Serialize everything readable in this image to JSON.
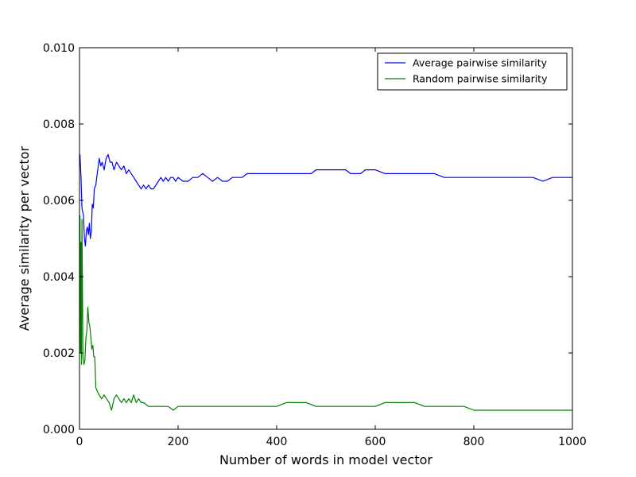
{
  "chart_data": {
    "type": "line",
    "xlabel": "Number of words in model vector",
    "ylabel": "Average similarity per vector",
    "xlim": [
      0,
      1000
    ],
    "ylim": [
      0,
      0.01
    ],
    "x_ticks": [
      "0",
      "200",
      "400",
      "600",
      "800",
      "1000"
    ],
    "y_ticks": [
      "0.000",
      "0.002",
      "0.004",
      "0.006",
      "0.008",
      "0.010"
    ],
    "grid": false,
    "legend_position": "top-right",
    "series": [
      {
        "name": "Average pairwise similarity",
        "color": "#0000ff",
        "points": [
          [
            1,
            0.0072
          ],
          [
            3,
            0.0066
          ],
          [
            5,
            0.0058
          ],
          [
            8,
            0.0056
          ],
          [
            10,
            0.005
          ],
          [
            12,
            0.0048
          ],
          [
            14,
            0.0052
          ],
          [
            16,
            0.0053
          ],
          [
            18,
            0.0051
          ],
          [
            20,
            0.0054
          ],
          [
            22,
            0.005
          ],
          [
            24,
            0.0052
          ],
          [
            26,
            0.0059
          ],
          [
            28,
            0.0058
          ],
          [
            30,
            0.0063
          ],
          [
            33,
            0.0064
          ],
          [
            36,
            0.0067
          ],
          [
            38,
            0.0069
          ],
          [
            40,
            0.0071
          ],
          [
            43,
            0.0069
          ],
          [
            46,
            0.007
          ],
          [
            50,
            0.0068
          ],
          [
            54,
            0.0071
          ],
          [
            58,
            0.0072
          ],
          [
            62,
            0.007
          ],
          [
            66,
            0.007
          ],
          [
            70,
            0.0068
          ],
          [
            75,
            0.007
          ],
          [
            80,
            0.0069
          ],
          [
            85,
            0.0068
          ],
          [
            90,
            0.0069
          ],
          [
            95,
            0.0067
          ],
          [
            100,
            0.0068
          ],
          [
            105,
            0.0067
          ],
          [
            110,
            0.0066
          ],
          [
            115,
            0.0065
          ],
          [
            120,
            0.0064
          ],
          [
            125,
            0.0063
          ],
          [
            130,
            0.0064
          ],
          [
            135,
            0.0063
          ],
          [
            140,
            0.0064
          ],
          [
            145,
            0.0063
          ],
          [
            150,
            0.0063
          ],
          [
            155,
            0.0064
          ],
          [
            160,
            0.0065
          ],
          [
            165,
            0.0066
          ],
          [
            170,
            0.0065
          ],
          [
            175,
            0.0066
          ],
          [
            180,
            0.0065
          ],
          [
            185,
            0.0066
          ],
          [
            190,
            0.0066
          ],
          [
            195,
            0.0065
          ],
          [
            200,
            0.0066
          ],
          [
            210,
            0.0065
          ],
          [
            220,
            0.0065
          ],
          [
            230,
            0.0066
          ],
          [
            240,
            0.0066
          ],
          [
            250,
            0.0067
          ],
          [
            260,
            0.0066
          ],
          [
            270,
            0.0065
          ],
          [
            280,
            0.0066
          ],
          [
            290,
            0.0065
          ],
          [
            300,
            0.0065
          ],
          [
            310,
            0.0066
          ],
          [
            320,
            0.0066
          ],
          [
            330,
            0.0066
          ],
          [
            340,
            0.0067
          ],
          [
            350,
            0.0067
          ],
          [
            360,
            0.0067
          ],
          [
            370,
            0.0067
          ],
          [
            380,
            0.0067
          ],
          [
            390,
            0.0067
          ],
          [
            400,
            0.0067
          ],
          [
            410,
            0.0067
          ],
          [
            420,
            0.0067
          ],
          [
            430,
            0.0067
          ],
          [
            440,
            0.0067
          ],
          [
            450,
            0.0067
          ],
          [
            460,
            0.0067
          ],
          [
            470,
            0.0067
          ],
          [
            480,
            0.0068
          ],
          [
            490,
            0.0068
          ],
          [
            500,
            0.0068
          ],
          [
            510,
            0.0068
          ],
          [
            520,
            0.0068
          ],
          [
            530,
            0.0068
          ],
          [
            540,
            0.0068
          ],
          [
            550,
            0.0067
          ],
          [
            560,
            0.0067
          ],
          [
            570,
            0.0067
          ],
          [
            580,
            0.0068
          ],
          [
            590,
            0.0068
          ],
          [
            600,
            0.0068
          ],
          [
            620,
            0.0067
          ],
          [
            640,
            0.0067
          ],
          [
            660,
            0.0067
          ],
          [
            680,
            0.0067
          ],
          [
            700,
            0.0067
          ],
          [
            720,
            0.0067
          ],
          [
            740,
            0.0066
          ],
          [
            760,
            0.0066
          ],
          [
            780,
            0.0066
          ],
          [
            800,
            0.0066
          ],
          [
            820,
            0.0066
          ],
          [
            840,
            0.0066
          ],
          [
            860,
            0.0066
          ],
          [
            880,
            0.0066
          ],
          [
            900,
            0.0066
          ],
          [
            920,
            0.0066
          ],
          [
            940,
            0.0065
          ],
          [
            960,
            0.0066
          ],
          [
            980,
            0.0066
          ],
          [
            1000,
            0.0066
          ]
        ]
      },
      {
        "name": "Random pairwise similarity",
        "color": "#008000",
        "points": [
          [
            1,
            0.0056
          ],
          [
            2,
            0.002
          ],
          [
            3,
            0.0049
          ],
          [
            4,
            0.0017
          ],
          [
            5,
            0.0055
          ],
          [
            7,
            0.0019
          ],
          [
            9,
            0.0017
          ],
          [
            11,
            0.0018
          ],
          [
            13,
            0.0024
          ],
          [
            15,
            0.0026
          ],
          [
            17,
            0.0032
          ],
          [
            19,
            0.0028
          ],
          [
            21,
            0.0027
          ],
          [
            23,
            0.0024
          ],
          [
            25,
            0.0021
          ],
          [
            27,
            0.0022
          ],
          [
            29,
            0.0019
          ],
          [
            31,
            0.0019
          ],
          [
            33,
            0.0011
          ],
          [
            36,
            0.001
          ],
          [
            40,
            0.0009
          ],
          [
            45,
            0.0008
          ],
          [
            50,
            0.0009
          ],
          [
            55,
            0.0008
          ],
          [
            60,
            0.0007
          ],
          [
            65,
            0.0005
          ],
          [
            70,
            0.0008
          ],
          [
            75,
            0.0009
          ],
          [
            80,
            0.0008
          ],
          [
            85,
            0.0007
          ],
          [
            90,
            0.0008
          ],
          [
            95,
            0.0007
          ],
          [
            100,
            0.0008
          ],
          [
            105,
            0.0007
          ],
          [
            110,
            0.0009
          ],
          [
            115,
            0.0007
          ],
          [
            120,
            0.0008
          ],
          [
            125,
            0.0007
          ],
          [
            130,
            0.0007
          ],
          [
            140,
            0.0006
          ],
          [
            150,
            0.0006
          ],
          [
            160,
            0.0006
          ],
          [
            170,
            0.0006
          ],
          [
            180,
            0.0006
          ],
          [
            190,
            0.0005
          ],
          [
            200,
            0.0006
          ],
          [
            220,
            0.0006
          ],
          [
            240,
            0.0006
          ],
          [
            260,
            0.0006
          ],
          [
            280,
            0.0006
          ],
          [
            300,
            0.0006
          ],
          [
            320,
            0.0006
          ],
          [
            340,
            0.0006
          ],
          [
            360,
            0.0006
          ],
          [
            380,
            0.0006
          ],
          [
            400,
            0.0006
          ],
          [
            420,
            0.0007
          ],
          [
            440,
            0.0007
          ],
          [
            460,
            0.0007
          ],
          [
            480,
            0.0006
          ],
          [
            500,
            0.0006
          ],
          [
            520,
            0.0006
          ],
          [
            540,
            0.0006
          ],
          [
            560,
            0.0006
          ],
          [
            580,
            0.0006
          ],
          [
            600,
            0.0006
          ],
          [
            620,
            0.0007
          ],
          [
            640,
            0.0007
          ],
          [
            660,
            0.0007
          ],
          [
            680,
            0.0007
          ],
          [
            700,
            0.0006
          ],
          [
            720,
            0.0006
          ],
          [
            740,
            0.0006
          ],
          [
            760,
            0.0006
          ],
          [
            780,
            0.0006
          ],
          [
            800,
            0.0005
          ],
          [
            820,
            0.0005
          ],
          [
            840,
            0.0005
          ],
          [
            860,
            0.0005
          ],
          [
            880,
            0.0005
          ],
          [
            900,
            0.0005
          ],
          [
            920,
            0.0005
          ],
          [
            940,
            0.0005
          ],
          [
            960,
            0.0005
          ],
          [
            980,
            0.0005
          ],
          [
            1000,
            0.0005
          ]
        ]
      }
    ]
  }
}
